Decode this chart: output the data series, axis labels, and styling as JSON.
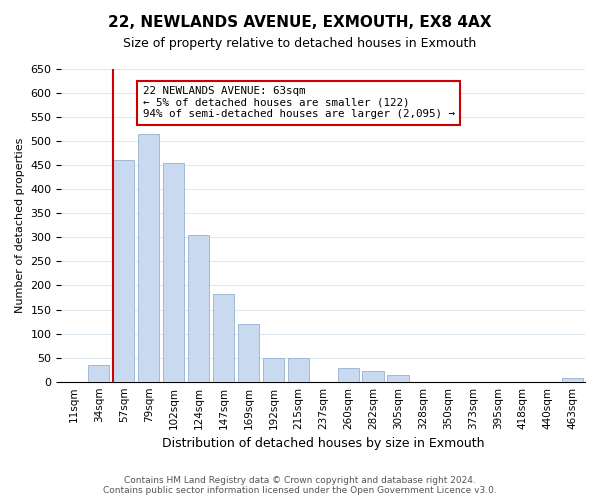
{
  "title": "22, NEWLANDS AVENUE, EXMOUTH, EX8 4AX",
  "subtitle": "Size of property relative to detached houses in Exmouth",
  "xlabel": "Distribution of detached houses by size in Exmouth",
  "ylabel": "Number of detached properties",
  "categories": [
    "11sqm",
    "34sqm",
    "57sqm",
    "79sqm",
    "102sqm",
    "124sqm",
    "147sqm",
    "169sqm",
    "192sqm",
    "215sqm",
    "237sqm",
    "260sqm",
    "282sqm",
    "305sqm",
    "328sqm",
    "350sqm",
    "373sqm",
    "395sqm",
    "418sqm",
    "440sqm",
    "463sqm"
  ],
  "bar_heights": [
    0,
    35,
    460,
    515,
    455,
    305,
    183,
    120,
    50,
    50,
    0,
    28,
    22,
    13,
    0,
    0,
    0,
    0,
    0,
    0,
    8
  ],
  "bar_color": "#c9d9f0",
  "bar_edge_color": "#a0b8d8",
  "ylim": [
    0,
    650
  ],
  "yticks": [
    0,
    50,
    100,
    150,
    200,
    250,
    300,
    350,
    400,
    450,
    500,
    550,
    600,
    650
  ],
  "vline_color": "#cc0000",
  "annotation_text": "22 NEWLANDS AVENUE: 63sqm\n← 5% of detached houses are smaller (122)\n94% of semi-detached houses are larger (2,095) →",
  "annotation_box_color": "#ffffff",
  "annotation_box_edge": "#cc0000",
  "footer_line1": "Contains HM Land Registry data © Crown copyright and database right 2024.",
  "footer_line2": "Contains public sector information licensed under the Open Government Licence v3.0.",
  "background_color": "#ffffff",
  "grid_color": "#dde8f0"
}
